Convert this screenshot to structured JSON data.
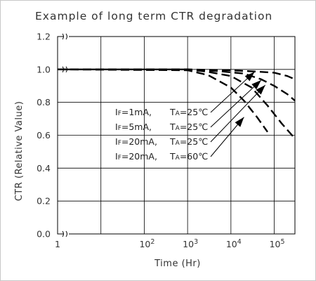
{
  "chart_data": {
    "type": "line",
    "title": "Example of long term CTR degradation",
    "xlabel": "Time (Hr)",
    "ylabel": "CTR (Relative Value)",
    "x_scale": "log",
    "xlim": [
      1,
      300000
    ],
    "ylim": [
      0.0,
      1.2
    ],
    "x_ticks": [
      {
        "value": 1,
        "label": "1"
      },
      {
        "value": 100,
        "label": "10",
        "exp": "2"
      },
      {
        "value": 1000,
        "label": "10",
        "exp": "3"
      },
      {
        "value": 10000,
        "label": "10",
        "exp": "4"
      },
      {
        "value": 100000,
        "label": "10",
        "exp": "5"
      }
    ],
    "y_ticks": [
      "0.0",
      "0.2",
      "0.4",
      "0.6",
      "0.8",
      "1.0",
      "1.2"
    ],
    "axis_break": true,
    "grid": true,
    "series": [
      {
        "name": "IF=1mA,  TA=25℃",
        "style": "dashed",
        "x": [
          1,
          1000,
          10000,
          50000,
          100000,
          200000,
          300000
        ],
        "y": [
          1.0,
          1.0,
          0.995,
          0.985,
          0.98,
          0.96,
          0.94
        ]
      },
      {
        "name": "IF=5mA,  TA=25℃",
        "style": "dashed",
        "x": [
          1,
          1000,
          5000,
          20000,
          50000,
          100000,
          200000,
          300000
        ],
        "y": [
          1.0,
          1.0,
          0.99,
          0.975,
          0.94,
          0.9,
          0.85,
          0.81
        ]
      },
      {
        "name": "IF=20mA, TA=25℃",
        "style": "dashed",
        "x": [
          1,
          1000,
          3000,
          10000,
          30000,
          70000,
          150000,
          300000
        ],
        "y": [
          1.0,
          1.0,
          0.985,
          0.96,
          0.89,
          0.78,
          0.67,
          0.58
        ]
      },
      {
        "name": "IF=20mA, TA=60℃",
        "style": "dashed",
        "x": [
          1,
          1000,
          3000,
          10000,
          20000,
          40000,
          70000
        ],
        "y": [
          1.0,
          0.995,
          0.965,
          0.89,
          0.81,
          0.71,
          0.62
        ]
      }
    ],
    "legend": [
      {
        "sub": "F",
        "current": "=1mA,",
        "temp": "=25℃"
      },
      {
        "sub": "F",
        "current": "=5mA,",
        "temp": "=25℃"
      },
      {
        "sub": "F",
        "current": "=20mA,",
        "temp": "=25℃"
      },
      {
        "sub": "F",
        "current": "=20mA,",
        "temp": "=60℃"
      }
    ],
    "legend_placement": "center"
  },
  "colors": {
    "line": "#000000",
    "grid": "#000000",
    "text": "#333333",
    "frame": "#c8c8c8"
  }
}
